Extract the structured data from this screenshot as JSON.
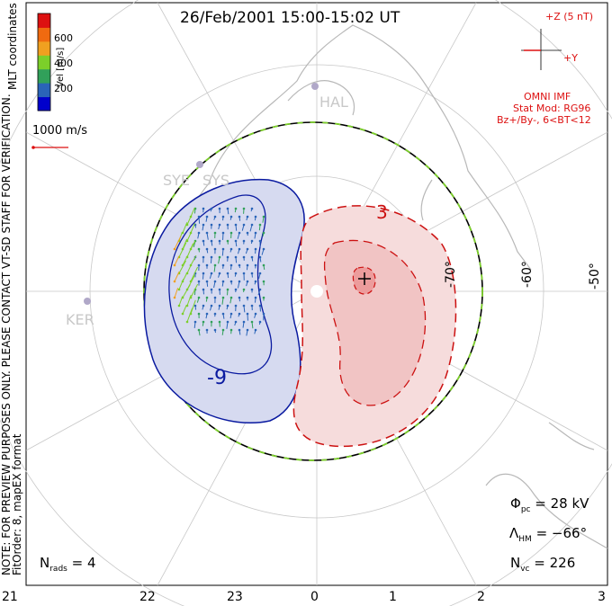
{
  "title": "26/Feb/2001 15:00-15:02 UT",
  "coordinates_label": "MLT coordinates",
  "colorbar": {
    "label": "Vel [m/s]",
    "ticks": [
      "600",
      "400",
      "200"
    ],
    "colors": [
      "#0000cc",
      "#2a64b8",
      "#31a05a",
      "#7ccf2a",
      "#f0a020",
      "#f06a10",
      "#dd1111"
    ]
  },
  "reference_vector": "1000 m/s",
  "preview_note": "NOTE: FOR PREVIEW PURPOSES ONLY. PLEASE CONTACT VT-SD STAFF FOR VERIFICATION.",
  "fit_order": "FitOrder: 8, mapEX format",
  "imf": {
    "z_label": "+Z (5 nT)",
    "y_label": "+Y",
    "source": "OMNI IMF",
    "model_line": "Stat Mod: RG96",
    "condition_line": "Bz+/By-, 6<BT<12"
  },
  "stations": [
    "HAL",
    "SYE",
    "SYS",
    "KER"
  ],
  "latitude_labels": [
    "-70°",
    "-60°",
    "-50°"
  ],
  "contour_labels": {
    "negative": "-9",
    "positive": "3"
  },
  "mlt_ticks": [
    "21",
    "22",
    "23",
    "0",
    "1",
    "2",
    "3"
  ],
  "stats": {
    "phi_symbol": "Φ",
    "phi_sub": "pc",
    "phi_value": "= 28 kV",
    "lambda_symbol": "Λ",
    "lambda_sub": "HM",
    "lambda_value": "= −66°",
    "nvc_symbol": "N",
    "nvc_sub": "vc",
    "nvc_value": "= 226",
    "nrads_symbol": "N",
    "nrads_sub": "rads",
    "nrads_value": "= 4"
  }
}
